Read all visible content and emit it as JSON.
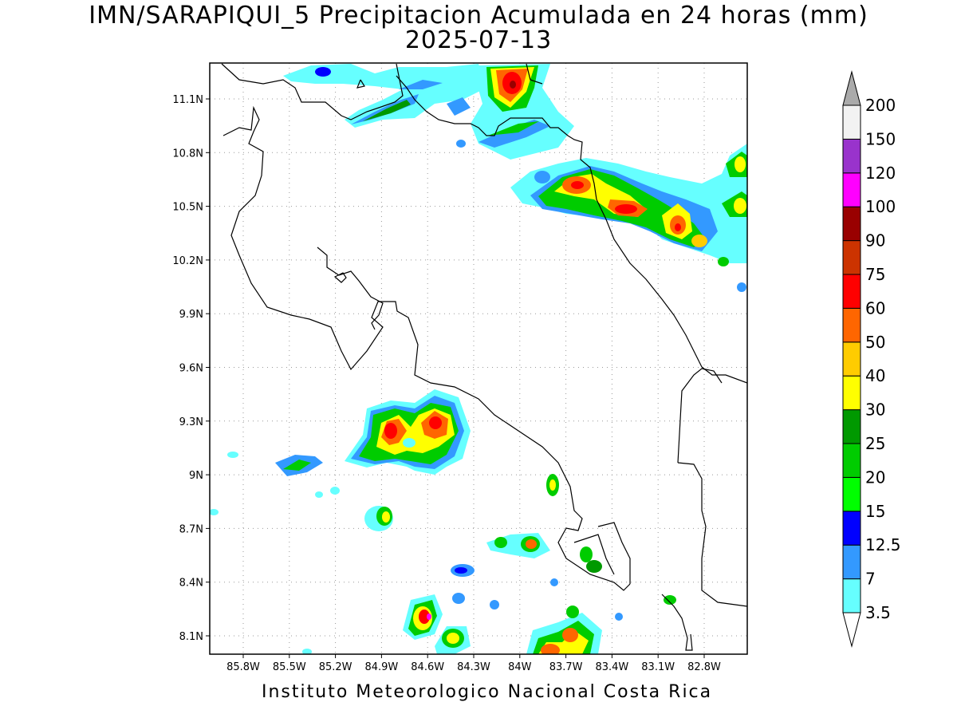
{
  "header": {
    "title": "IMN/SARAPIQUI_5 Precipitacion Acumulada en 24 horas (mm)",
    "date": "2025-07-13"
  },
  "footer": {
    "credit": "Instituto Meteorologico Nacional Costa Rica"
  },
  "map": {
    "lat_ticks": [
      "11.1N",
      "10.8N",
      "10.5N",
      "10.2N",
      "9.9N",
      "9.6N",
      "9.3N",
      "9N",
      "8.7N",
      "8.4N",
      "8.1N"
    ],
    "lon_ticks": [
      "85.8W",
      "85.5W",
      "85.2W",
      "84.9W",
      "84.6W",
      "84.3W",
      "84W",
      "83.7W",
      "83.4W",
      "83.1W",
      "82.8W"
    ]
  },
  "colorbar": {
    "levels": [
      {
        "label": "3.5",
        "color": "#66ffff"
      },
      {
        "label": "7",
        "color": "#3399ff"
      },
      {
        "label": "12.5",
        "color": "#0000ff"
      },
      {
        "label": "15",
        "color": "#00ff00"
      },
      {
        "label": "20",
        "color": "#00cc00"
      },
      {
        "label": "25",
        "color": "#009900"
      },
      {
        "label": "30",
        "color": "#ffff00"
      },
      {
        "label": "40",
        "color": "#ffcc00"
      },
      {
        "label": "50",
        "color": "#ff6600"
      },
      {
        "label": "60",
        "color": "#ff0000"
      },
      {
        "label": "75",
        "color": "#cc3300"
      },
      {
        "label": "90",
        "color": "#990000"
      },
      {
        "label": "100",
        "color": "#ff00ff"
      },
      {
        "label": "120",
        "color": "#9933cc"
      },
      {
        "label": "150",
        "color": "#f2f2f2"
      },
      {
        "label": "200",
        "color": "#aaaaaa"
      }
    ]
  }
}
